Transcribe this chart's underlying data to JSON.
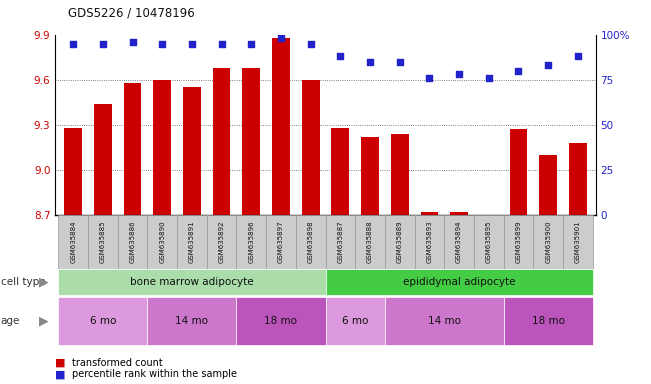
{
  "title": "GDS5226 / 10478196",
  "samples": [
    "GSM635884",
    "GSM635885",
    "GSM635886",
    "GSM635890",
    "GSM635891",
    "GSM635892",
    "GSM635896",
    "GSM635897",
    "GSM635898",
    "GSM635887",
    "GSM635888",
    "GSM635889",
    "GSM635893",
    "GSM635894",
    "GSM635895",
    "GSM635899",
    "GSM635900",
    "GSM635901"
  ],
  "bar_values": [
    9.28,
    9.44,
    9.58,
    9.6,
    9.55,
    9.68,
    9.68,
    9.88,
    9.6,
    9.28,
    9.22,
    9.24,
    8.72,
    8.72,
    8.7,
    9.27,
    9.1,
    9.18
  ],
  "dot_values": [
    95,
    95,
    96,
    95,
    95,
    95,
    95,
    98,
    95,
    88,
    85,
    85,
    76,
    78,
    76,
    80,
    83,
    88
  ],
  "ylim_left": [
    8.7,
    9.9
  ],
  "ylim_right": [
    0,
    100
  ],
  "yticks_left": [
    8.7,
    9.0,
    9.3,
    9.6,
    9.9
  ],
  "yticks_right": [
    0,
    25,
    50,
    75,
    100
  ],
  "bar_color": "#cc0000",
  "dot_color": "#2222cc",
  "bar_base": 8.7,
  "cell_type_groups": [
    {
      "label": "bone marrow adipocyte",
      "start": 0,
      "end": 9,
      "color": "#aaddaa"
    },
    {
      "label": "epididymal adipocyte",
      "start": 9,
      "end": 18,
      "color": "#44cc44"
    }
  ],
  "age_groups": [
    {
      "label": "6 mo",
      "start": 0,
      "end": 3,
      "color": "#dd99dd"
    },
    {
      "label": "14 mo",
      "start": 3,
      "end": 6,
      "color": "#cc77cc"
    },
    {
      "label": "18 mo",
      "start": 6,
      "end": 9,
      "color": "#bb55bb"
    },
    {
      "label": "6 mo",
      "start": 9,
      "end": 11,
      "color": "#dd99dd"
    },
    {
      "label": "14 mo",
      "start": 11,
      "end": 15,
      "color": "#cc77cc"
    },
    {
      "label": "18 mo",
      "start": 15,
      "end": 18,
      "color": "#bb55bb"
    }
  ],
  "cell_type_label": "cell type",
  "age_label": "age",
  "legend_bar_label": "transformed count",
  "legend_dot_label": "percentile rank within the sample",
  "grid_color": "#555555",
  "background_color": "#ffffff",
  "tick_label_color_left": "#cc0000",
  "tick_label_color_right": "#2222cc",
  "sample_box_color": "#cccccc",
  "sample_box_edge": "#999999"
}
